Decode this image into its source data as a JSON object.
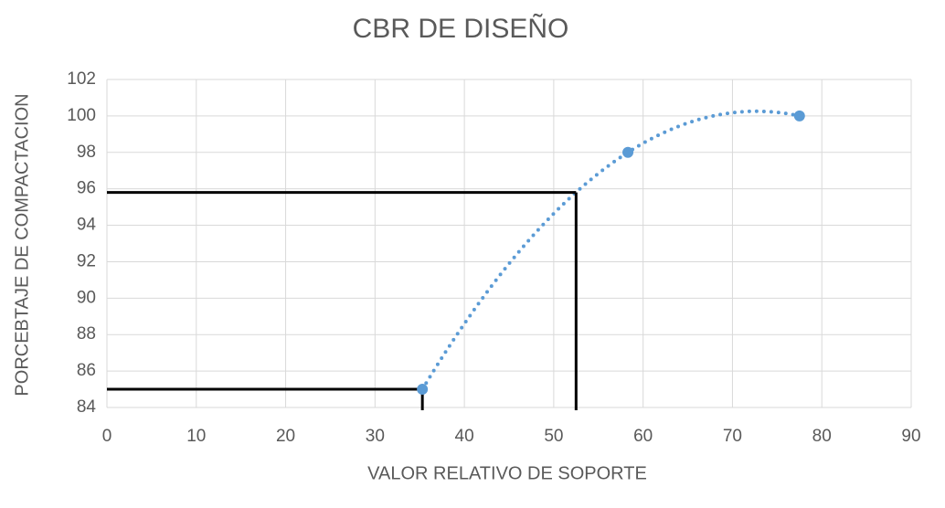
{
  "chart_data": {
    "type": "scatter",
    "title": "CBR DE DISEÑO",
    "x_label": "VALOR RELATIVO DE SOPORTE",
    "y_label": "PORCEBTAJE DE COMPACTACION",
    "x": [
      35.3,
      58.3,
      77.5
    ],
    "values": [
      85,
      98,
      100
    ],
    "color": "#5b9bd5",
    "trendline": "polynomial",
    "reference_lines": [
      {
        "x": 52.5,
        "y": 95.8
      },
      {
        "x": 35.3,
        "y": 85
      }
    ],
    "xlim": [
      0,
      90
    ],
    "xticks": [
      0,
      10,
      20,
      30,
      40,
      50,
      60,
      70,
      80,
      90
    ],
    "ylim": [
      84,
      102
    ],
    "yticks": [
      84,
      86,
      88,
      90,
      92,
      94,
      96,
      98,
      100,
      102
    ],
    "grid": true
  }
}
